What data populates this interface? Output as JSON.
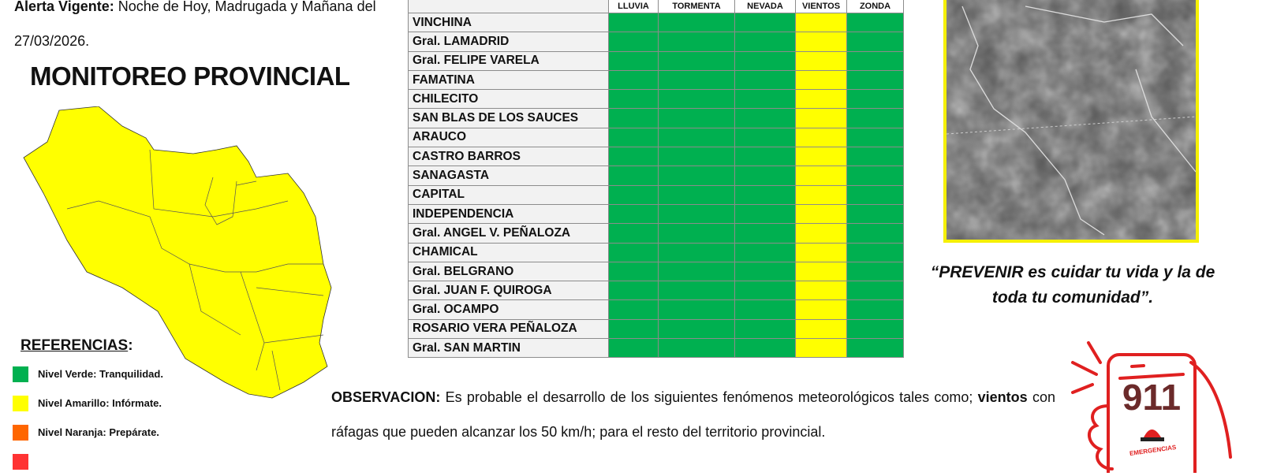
{
  "alert": {
    "label": "Alerta Vigente:",
    "text": "Noche de Hoy, Madrugada y Mañana del 27/03/2026."
  },
  "monitoring_title": "MONITOREO PROVINCIAL",
  "map": {
    "fill_color": "#ffff00",
    "status": "Nivel Amarillo"
  },
  "references": {
    "title": "REFERENCIAS",
    "colon": ":",
    "items": [
      {
        "label": "Nivel Verde: Tranquilidad.",
        "color": "#00b050"
      },
      {
        "label": "Nivel Amarillo: Infórmate.",
        "color": "#ffff00"
      },
      {
        "label": "Nivel Naranja: Prepárate.",
        "color": "#ff6600"
      }
    ]
  },
  "table": {
    "columns": [
      "LLUVIA",
      "TORMENTA",
      "NEVADA",
      "VIENTOS",
      "ZONDA"
    ],
    "colors": {
      "verde": "#00b050",
      "amarillo": "#ffff00"
    },
    "rows": [
      {
        "name": "VINCHINA",
        "levels": [
          "verde",
          "verde",
          "verde",
          "amarillo",
          "verde"
        ]
      },
      {
        "name": "Gral. LAMADRID",
        "levels": [
          "verde",
          "verde",
          "verde",
          "amarillo",
          "verde"
        ]
      },
      {
        "name": "Gral. FELIPE VARELA",
        "levels": [
          "verde",
          "verde",
          "verde",
          "amarillo",
          "verde"
        ]
      },
      {
        "name": "FAMATINA",
        "levels": [
          "verde",
          "verde",
          "verde",
          "amarillo",
          "verde"
        ]
      },
      {
        "name": "CHILECITO",
        "levels": [
          "verde",
          "verde",
          "verde",
          "amarillo",
          "verde"
        ]
      },
      {
        "name": "SAN BLAS DE LOS SAUCES",
        "levels": [
          "verde",
          "verde",
          "verde",
          "amarillo",
          "verde"
        ]
      },
      {
        "name": "ARAUCO",
        "levels": [
          "verde",
          "verde",
          "verde",
          "amarillo",
          "verde"
        ]
      },
      {
        "name": "CASTRO BARROS",
        "levels": [
          "verde",
          "verde",
          "verde",
          "amarillo",
          "verde"
        ]
      },
      {
        "name": "SANAGASTA",
        "levels": [
          "verde",
          "verde",
          "verde",
          "amarillo",
          "verde"
        ]
      },
      {
        "name": "CAPITAL",
        "levels": [
          "verde",
          "verde",
          "verde",
          "amarillo",
          "verde"
        ]
      },
      {
        "name": "INDEPENDENCIA",
        "levels": [
          "verde",
          "verde",
          "verde",
          "amarillo",
          "verde"
        ]
      },
      {
        "name": "Gral. ANGEL V. PEÑALOZA",
        "levels": [
          "verde",
          "verde",
          "verde",
          "amarillo",
          "verde"
        ]
      },
      {
        "name": "CHAMICAL",
        "levels": [
          "verde",
          "verde",
          "verde",
          "amarillo",
          "verde"
        ]
      },
      {
        "name": "Gral. BELGRANO",
        "levels": [
          "verde",
          "verde",
          "verde",
          "amarillo",
          "verde"
        ]
      },
      {
        "name": "Gral. JUAN F. QUIROGA",
        "levels": [
          "verde",
          "verde",
          "verde",
          "amarillo",
          "verde"
        ]
      },
      {
        "name": "Gral. OCAMPO",
        "levels": [
          "verde",
          "verde",
          "verde",
          "amarillo",
          "verde"
        ]
      },
      {
        "name": "ROSARIO VERA PEÑALOZA",
        "levels": [
          "verde",
          "verde",
          "verde",
          "amarillo",
          "verde"
        ]
      },
      {
        "name": "Gral. SAN MARTIN",
        "levels": [
          "verde",
          "verde",
          "verde",
          "amarillo",
          "verde"
        ]
      }
    ]
  },
  "quote": "“PREVENIR es cuidar tu vida y la de toda tu comunidad”.",
  "observation": {
    "label": "OBSERVACION:",
    "text1": "Es probable el desarrollo de los siguientes fenómenos meteorológicos tales como;",
    "bold": "vientos",
    "text2": "con ráfagas que pueden alcanzar los 50 km/h; para el resto del territorio provincial."
  },
  "emergency": {
    "number": "911",
    "label": "EMERGENCIAS",
    "color": "#e02020"
  }
}
